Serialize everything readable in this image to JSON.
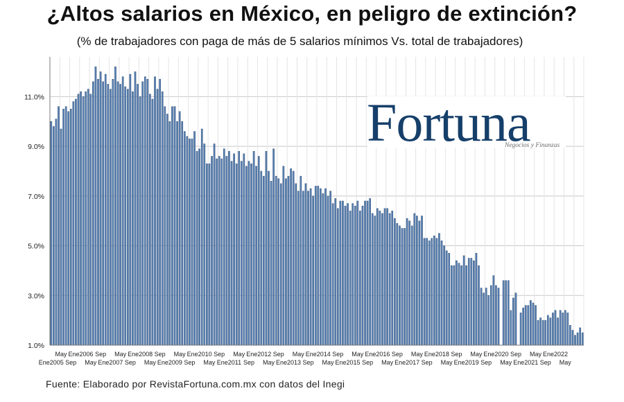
{
  "header": {
    "title": "¿Altos salarios en México, en peligro de extinción?",
    "subtitle": "(% de trabajadores con paga de más de 5 salarios mínimos Vs. total de trabajadores)"
  },
  "footer": {
    "source": "Fuente: Elaborado por RevistaFortuna.com.mx con datos del Inegi"
  },
  "logo": {
    "wordmark": "Fortuna",
    "tagline": "Negocios y Finanzas",
    "color": "#163f6a"
  },
  "chart_data": {
    "type": "bar",
    "bar_color": "#5b83b5",
    "bar_edge_color": "#2e4f7a",
    "grid": true,
    "ylim": [
      1.0,
      12.6
    ],
    "yticks": [
      {
        "value": 1.0,
        "label": "1.0%"
      },
      {
        "value": 3.0,
        "label": "3.0%"
      },
      {
        "value": 5.0,
        "label": "5.0%"
      },
      {
        "value": 7.0,
        "label": "7.0%"
      },
      {
        "value": 9.0,
        "label": "9.0%"
      },
      {
        "value": 11.0,
        "label": "11.0%"
      }
    ],
    "start": "Ene 2005",
    "end": "May 2022",
    "frequency": "monthly",
    "x_tick_labels": [
      {
        "row": 2,
        "label": "Ene2005"
      },
      {
        "row": 1,
        "label": "May"
      },
      {
        "row": 2,
        "label": "Sep"
      },
      {
        "row": 1,
        "label": "Ene2006"
      },
      {
        "row": 2,
        "label": "May"
      },
      {
        "row": 1,
        "label": "Sep"
      },
      {
        "row": 2,
        "label": "Ene2007"
      },
      {
        "row": 1,
        "label": "May"
      },
      {
        "row": 2,
        "label": "Sep"
      },
      {
        "row": 1,
        "label": "Ene2008"
      },
      {
        "row": 2,
        "label": "May"
      },
      {
        "row": 1,
        "label": "Sep"
      },
      {
        "row": 2,
        "label": "Ene2009"
      },
      {
        "row": 1,
        "label": "May"
      },
      {
        "row": 2,
        "label": "Sep"
      },
      {
        "row": 1,
        "label": "Ene2010"
      },
      {
        "row": 2,
        "label": "May"
      },
      {
        "row": 1,
        "label": "Sep"
      },
      {
        "row": 2,
        "label": "Ene2011"
      },
      {
        "row": 1,
        "label": "May"
      },
      {
        "row": 2,
        "label": "Sep"
      },
      {
        "row": 1,
        "label": "Ene2012"
      },
      {
        "row": 2,
        "label": "May"
      },
      {
        "row": 1,
        "label": "Sep"
      },
      {
        "row": 2,
        "label": "Ene2013"
      },
      {
        "row": 1,
        "label": "May"
      },
      {
        "row": 2,
        "label": "Sep"
      },
      {
        "row": 1,
        "label": "Ene2014"
      },
      {
        "row": 2,
        "label": "May"
      },
      {
        "row": 1,
        "label": "Sep"
      },
      {
        "row": 2,
        "label": "Ene2015"
      },
      {
        "row": 1,
        "label": "May"
      },
      {
        "row": 2,
        "label": "Sep"
      },
      {
        "row": 1,
        "label": "Ene2016"
      },
      {
        "row": 2,
        "label": "May"
      },
      {
        "row": 1,
        "label": "Sep"
      },
      {
        "row": 2,
        "label": "Ene2017"
      },
      {
        "row": 1,
        "label": "May"
      },
      {
        "row": 2,
        "label": "Sep"
      },
      {
        "row": 1,
        "label": "Ene2018"
      },
      {
        "row": 2,
        "label": "May"
      },
      {
        "row": 1,
        "label": "Sep"
      },
      {
        "row": 2,
        "label": "Ene2019"
      },
      {
        "row": 1,
        "label": "May"
      },
      {
        "row": 2,
        "label": "Sep"
      },
      {
        "row": 1,
        "label": "Ene2020"
      },
      {
        "row": 2,
        "label": "May"
      },
      {
        "row": 1,
        "label": "Sep"
      },
      {
        "row": 2,
        "label": "Ene2021"
      },
      {
        "row": 1,
        "label": "May"
      },
      {
        "row": 2,
        "label": "Sep"
      },
      {
        "row": 1,
        "label": "Ene2022"
      },
      {
        "row": 2,
        "label": "May"
      }
    ],
    "values": [
      10.0,
      9.8,
      10.1,
      10.6,
      9.7,
      10.5,
      10.6,
      10.4,
      10.5,
      10.8,
      10.9,
      11.1,
      11.2,
      11.0,
      11.2,
      11.3,
      11.1,
      11.6,
      12.2,
      11.7,
      12.0,
      11.6,
      11.9,
      11.5,
      11.3,
      11.7,
      12.2,
      11.6,
      11.5,
      11.8,
      11.4,
      11.3,
      11.9,
      11.2,
      12.0,
      11.5,
      11.0,
      11.6,
      11.8,
      11.7,
      11.1,
      10.9,
      11.8,
      11.3,
      11.7,
      11.2,
      10.6,
      10.3,
      10.0,
      10.6,
      10.6,
      10.0,
      10.4,
      10.0,
      9.6,
      9.4,
      9.3,
      9.3,
      9.6,
      8.8,
      8.9,
      9.7,
      9.1,
      8.3,
      8.3,
      8.6,
      9.1,
      8.5,
      8.6,
      8.5,
      8.9,
      8.6,
      8.8,
      8.4,
      8.7,
      8.3,
      8.8,
      8.4,
      8.7,
      8.2,
      8.4,
      8.3,
      8.8,
      8.2,
      8.6,
      8.0,
      7.8,
      8.8,
      8.0,
      7.6,
      8.9,
      7.8,
      7.7,
      7.5,
      8.2,
      7.7,
      7.8,
      8.1,
      8.0,
      7.5,
      7.2,
      7.8,
      7.2,
      7.5,
      7.2,
      7.3,
      7.0,
      7.4,
      7.4,
      7.3,
      7.1,
      7.3,
      7.0,
      7.2,
      6.7,
      6.9,
      6.5,
      6.8,
      6.8,
      6.6,
      6.7,
      6.4,
      6.7,
      6.6,
      6.8,
      6.4,
      6.6,
      6.8,
      6.8,
      6.9,
      6.3,
      6.2,
      6.5,
      6.4,
      6.3,
      6.5,
      6.5,
      6.3,
      6.4,
      6.1,
      5.9,
      5.8,
      5.7,
      5.7,
      6.1,
      6.0,
      5.8,
      6.3,
      6.2,
      6.0,
      6.2,
      5.3,
      5.3,
      5.2,
      5.3,
      5.4,
      5.3,
      5.5,
      5.2,
      5.0,
      4.8,
      4.7,
      4.2,
      4.2,
      4.4,
      4.3,
      4.2,
      4.6,
      4.2,
      4.5,
      4.5,
      4.4,
      4.7,
      4.2,
      3.3,
      3.1,
      3.3,
      3.0,
      3.4,
      3.8,
      3.4,
      3.3,
      0.0,
      3.6,
      3.6,
      3.6,
      2.4,
      2.9,
      3.1,
      0.0,
      2.3,
      2.5,
      2.6,
      2.6,
      2.8,
      2.7,
      2.6,
      2.0,
      2.1,
      2.0,
      2.0,
      2.2,
      2.1,
      2.3,
      2.4,
      2.1,
      2.4,
      2.3,
      2.4,
      2.3,
      1.8,
      1.6,
      1.4,
      1.5,
      1.7,
      1.5
    ]
  }
}
